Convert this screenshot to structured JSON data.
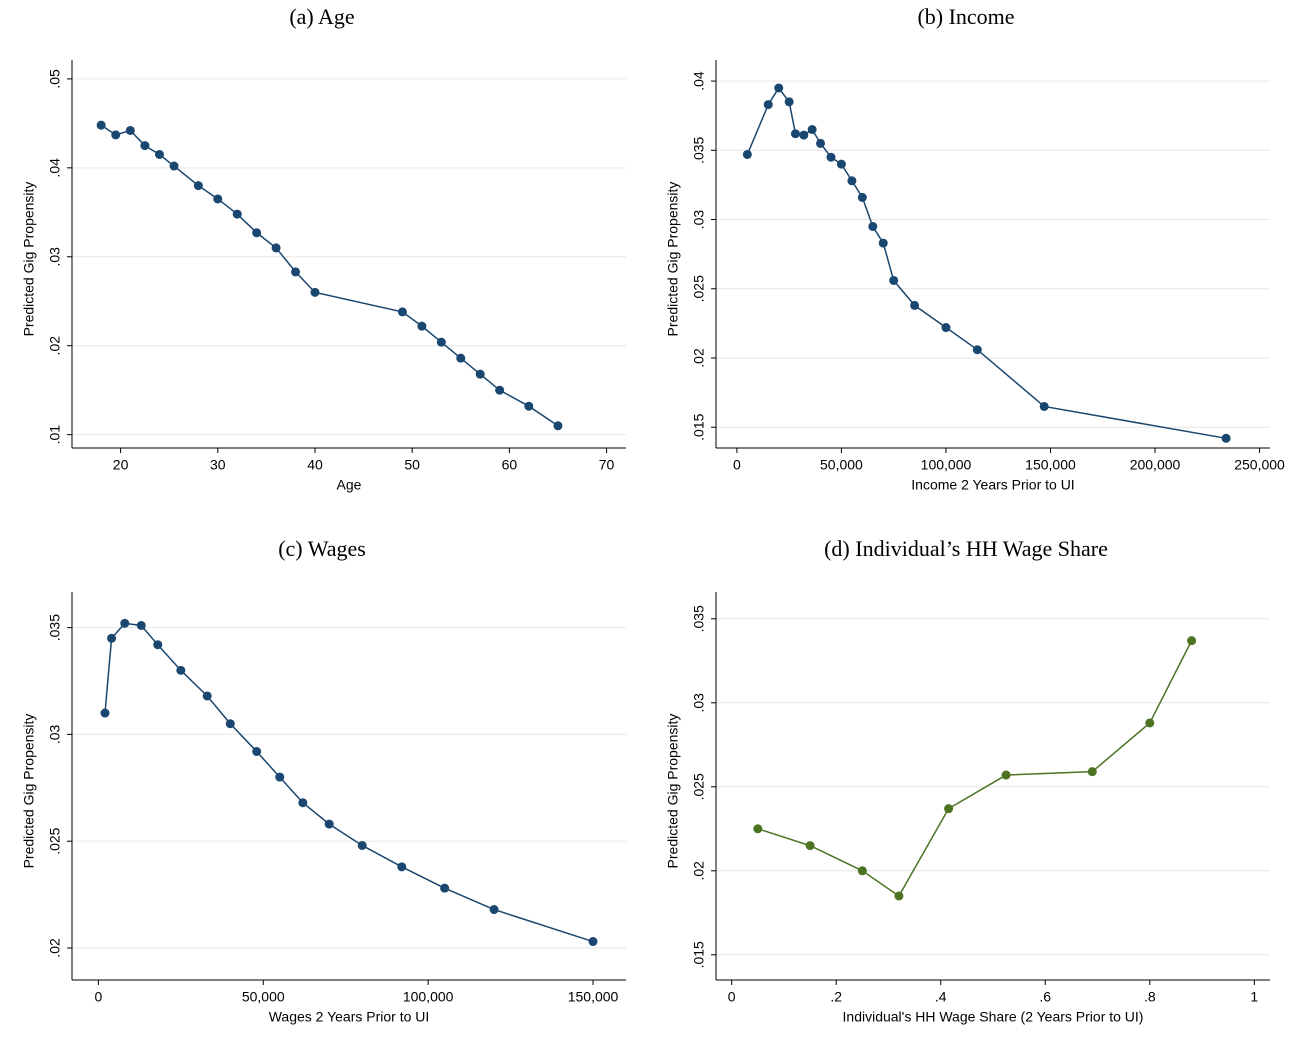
{
  "chart_data": [
    {
      "type": "line",
      "title": "(a) Age",
      "x_label": "Age",
      "y_label": "Predicted Gig Propensity",
      "color": "#1a476f",
      "grid": true,
      "x": [
        18,
        19.5,
        21,
        22.5,
        24,
        25.5,
        28,
        30,
        32,
        34,
        36,
        38,
        40,
        49,
        51,
        53,
        55,
        57,
        59,
        62,
        65
      ],
      "values": [
        0.0448,
        0.0437,
        0.0442,
        0.0425,
        0.0415,
        0.0402,
        0.038,
        0.0365,
        0.0348,
        0.0327,
        0.031,
        0.0283,
        0.026,
        0.0238,
        0.0222,
        0.0204,
        0.0186,
        0.0168,
        0.015,
        0.0132,
        0.011
      ],
      "xlim": [
        15,
        72
      ],
      "ylim": [
        0.0085,
        0.051
      ],
      "xticks": [
        20,
        30,
        40,
        50,
        60,
        70
      ],
      "yticks": [
        {
          "value": 0.01,
          "label": ".01"
        },
        {
          "value": 0.02,
          "label": ".02"
        },
        {
          "value": 0.03,
          "label": ".03"
        },
        {
          "value": 0.04,
          "label": ".04"
        },
        {
          "value": 0.05,
          "label": ".05"
        }
      ]
    },
    {
      "type": "line",
      "title": "(b) Income",
      "x_label": "Income 2 Years Prior to UI",
      "y_label": "Predicted Gig Propensity",
      "color": "#1a476f",
      "grid": true,
      "x": [
        5000,
        15000,
        20000,
        25000,
        28000,
        32000,
        36000,
        40000,
        45000,
        50000,
        55000,
        60000,
        65000,
        70000,
        75000,
        85000,
        100000,
        115000,
        147000,
        234000
      ],
      "values": [
        0.0347,
        0.0383,
        0.0395,
        0.0385,
        0.0362,
        0.0361,
        0.0365,
        0.0355,
        0.0345,
        0.034,
        0.0328,
        0.0316,
        0.0295,
        0.0283,
        0.0256,
        0.0238,
        0.0222,
        0.0206,
        0.0165,
        0.0142
      ],
      "xlim": [
        -10000,
        255000
      ],
      "ylim": [
        0.0135,
        0.0408
      ],
      "xticks": [
        0,
        {
          "value": 50000,
          "label": "50,000"
        },
        {
          "value": 100000,
          "label": "100,000"
        },
        {
          "value": 150000,
          "label": "150,000"
        },
        {
          "value": 200000,
          "label": "200,000"
        },
        {
          "value": 250000,
          "label": "250,000"
        }
      ],
      "yticks": [
        {
          "value": 0.015,
          "label": ".015"
        },
        {
          "value": 0.02,
          "label": ".02"
        },
        {
          "value": 0.025,
          "label": ".025"
        },
        {
          "value": 0.03,
          "label": ".03"
        },
        {
          "value": 0.035,
          "label": ".035"
        },
        {
          "value": 0.04,
          "label": ".04"
        }
      ]
    },
    {
      "type": "line",
      "title": "(c) Wages",
      "x_label": "Wages 2 Years Prior to UI",
      "y_label": "Predicted Gig Propensity",
      "color": "#1a476f",
      "grid": true,
      "x": [
        2000,
        4000,
        8000,
        13000,
        18000,
        25000,
        33000,
        40000,
        48000,
        55000,
        62000,
        70000,
        80000,
        92000,
        105000,
        120000,
        150000
      ],
      "values": [
        0.031,
        0.0345,
        0.0352,
        0.0351,
        0.0342,
        0.033,
        0.0318,
        0.0305,
        0.0292,
        0.028,
        0.0268,
        0.0258,
        0.0248,
        0.0238,
        0.0228,
        0.0218,
        0.0203
      ],
      "xlim": [
        -8000,
        160000
      ],
      "ylim": [
        0.0185,
        0.0362
      ],
      "xticks": [
        0,
        {
          "value": 50000,
          "label": "50,000"
        },
        {
          "value": 100000,
          "label": "100,000"
        },
        {
          "value": 150000,
          "label": "150,000"
        }
      ],
      "yticks": [
        {
          "value": 0.02,
          "label": ".02"
        },
        {
          "value": 0.025,
          "label": ".025"
        },
        {
          "value": 0.03,
          "label": ".03"
        },
        {
          "value": 0.035,
          "label": ".035"
        }
      ]
    },
    {
      "type": "line",
      "title": "(d) Individual’s HH Wage Share",
      "x_label": "Individual's HH Wage Share (2 Years Prior to UI)",
      "y_label": "Predicted Gig Propensity",
      "color": "#4b7322",
      "grid": true,
      "x": [
        0.05,
        0.15,
        0.25,
        0.32,
        0.415,
        0.525,
        0.69,
        0.8,
        0.88
      ],
      "values": [
        0.0225,
        0.0215,
        0.02,
        0.0185,
        0.0237,
        0.0257,
        0.0259,
        0.0288,
        0.0337
      ],
      "xlim": [
        -0.03,
        1.03
      ],
      "ylim": [
        0.0135,
        0.036
      ],
      "xticks": [
        0,
        {
          "value": 0.2,
          "label": ".2"
        },
        {
          "value": 0.4,
          "label": ".4"
        },
        {
          "value": 0.6,
          "label": ".6"
        },
        {
          "value": 0.8,
          "label": ".8"
        },
        1
      ],
      "yticks": [
        {
          "value": 0.015,
          "label": ".015"
        },
        {
          "value": 0.02,
          "label": ".02"
        },
        {
          "value": 0.025,
          "label": ".025"
        },
        {
          "value": 0.03,
          "label": ".03"
        },
        {
          "value": 0.035,
          "label": ".035"
        }
      ]
    }
  ]
}
